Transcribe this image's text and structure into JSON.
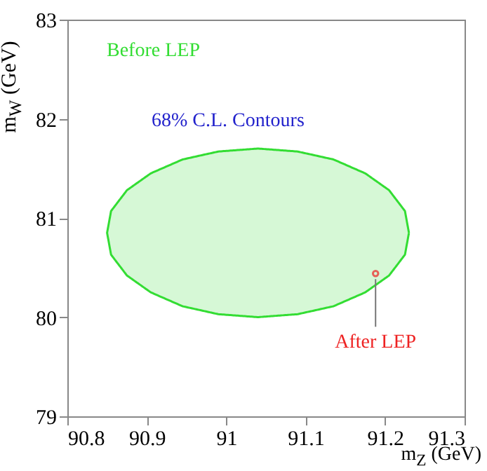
{
  "chart_data": {
    "type": "area",
    "xlabel": "m$_{Z}$ (GeV)",
    "ylabel": "m$_{W}$ (GeV)",
    "annotations": [
      "68% C.L. Contours"
    ],
    "xlim": [
      90.8,
      91.3
    ],
    "xticks": [
      90.8,
      90.9,
      91,
      91.1,
      91.2,
      91.3
    ],
    "ylim": [
      79,
      83
    ],
    "yticks": [
      79,
      80,
      81,
      82,
      83
    ],
    "grid": false,
    "series": [
      {
        "name": "Before LEP",
        "color": "#33dd33",
        "x": [
          91.23,
          91.225,
          91.205,
          91.175,
          91.135,
          91.09,
          91.04,
          90.99,
          90.945,
          90.905,
          90.875,
          90.855,
          90.85,
          90.855,
          90.875,
          90.905,
          90.945,
          90.99,
          91.04,
          91.09,
          91.135,
          91.175,
          91.205,
          91.225,
          91.23
        ],
        "values": [
          80.85,
          81.07,
          81.28,
          81.45,
          81.59,
          81.67,
          81.7,
          81.67,
          81.59,
          81.45,
          81.28,
          81.07,
          80.85,
          80.63,
          80.42,
          80.25,
          80.11,
          80.03,
          80.0,
          80.03,
          80.11,
          80.25,
          80.42,
          80.63,
          80.85
        ]
      },
      {
        "name": "After LEP",
        "type": "scatter",
        "color": "#ee2222",
        "x": [
          91.188
        ],
        "values": [
          80.44
        ]
      }
    ]
  }
}
